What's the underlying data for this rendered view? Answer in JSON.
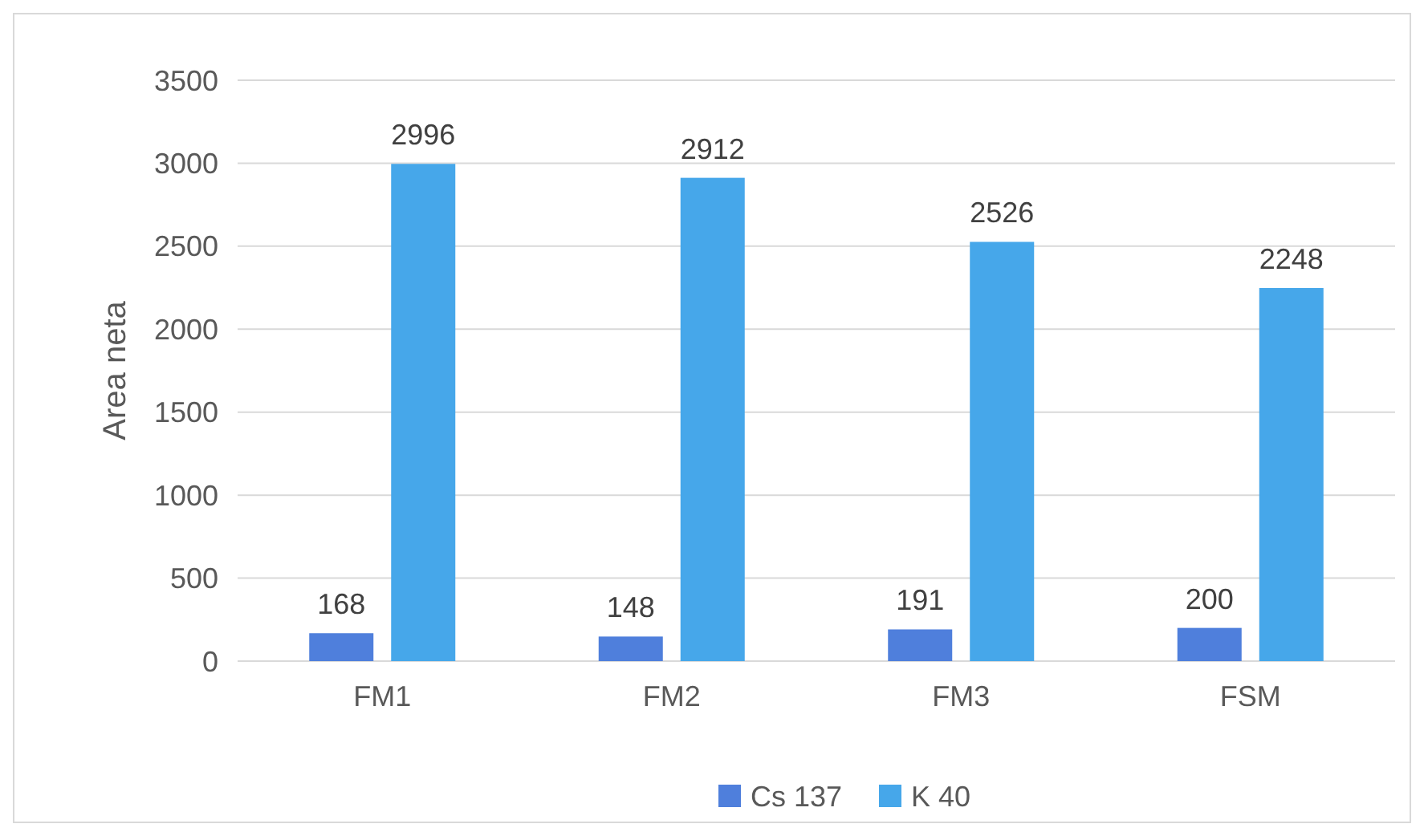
{
  "chart_data": {
    "type": "bar",
    "ylabel": "Area neta",
    "categories": [
      "FM1",
      "FM2",
      "FM3",
      "FSM"
    ],
    "series": [
      {
        "name": "Cs 137",
        "color": "#4f7fdc",
        "values": [
          168,
          148,
          191,
          200
        ]
      },
      {
        "name": "K 40",
        "color": "#46a7ea",
        "values": [
          2996,
          2912,
          2526,
          2248
        ]
      }
    ],
    "ylim": [
      0,
      3500
    ],
    "yticks": [
      0,
      500,
      1000,
      1500,
      2000,
      2500,
      3000,
      3500
    ],
    "grid": "y",
    "legend": "bottom",
    "data_labels": true
  }
}
